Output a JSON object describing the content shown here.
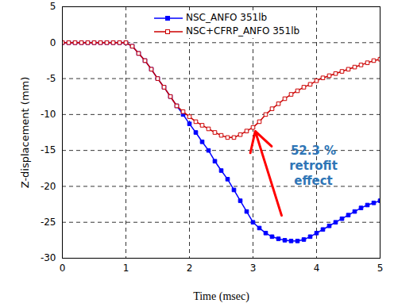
{
  "chart_data": {
    "type": "line",
    "x_label": "Time (msec)",
    "y_label": "Z-displacement (mm)",
    "xlim": [
      0,
      5
    ],
    "xticks": [
      0,
      1,
      2,
      3,
      4,
      5
    ],
    "ylim": [
      -30,
      5
    ],
    "yticks": [
      -30,
      -25,
      -20,
      -15,
      -10,
      -5,
      0,
      5
    ],
    "grid": true,
    "legend": "top",
    "annotations": [
      {
        "text": "52.3 %\nretrofit\neffect",
        "color": "#2e75b6"
      }
    ],
    "x": [
      0,
      0.1,
      0.2,
      0.3,
      0.4,
      0.5,
      0.6,
      0.7,
      0.8,
      0.9,
      1,
      1.1,
      1.2,
      1.3,
      1.4,
      1.5,
      1.6,
      1.7,
      1.8,
      1.9,
      2,
      2.1,
      2.2,
      2.3,
      2.4,
      2.5,
      2.6,
      2.7,
      2.8,
      2.9,
      3,
      3.1,
      3.2,
      3.3,
      3.4,
      3.5,
      3.6,
      3.7,
      3.8,
      3.9,
      4,
      4.1,
      4.2,
      4.3,
      4.4,
      4.5,
      4.6,
      4.7,
      4.8,
      4.9,
      5
    ],
    "series": [
      {
        "name": "NSC_ANFO 351lb",
        "color": "#0000ff",
        "marker": "square",
        "values": [
          0,
          0,
          0,
          0,
          0,
          0,
          0,
          0,
          0,
          0,
          0,
          -0.5,
          -1.5,
          -2.5,
          -3.7,
          -5,
          -6.2,
          -7.5,
          -8.8,
          -10,
          -11.3,
          -12.5,
          -13.8,
          -15,
          -16.5,
          -17.8,
          -19,
          -20.5,
          -22,
          -23.5,
          -25,
          -25.8,
          -26.5,
          -27,
          -27.3,
          -27.5,
          -27.6,
          -27.6,
          -27.4,
          -27,
          -26.5,
          -26,
          -25.5,
          -25,
          -24.5,
          -24,
          -23.5,
          -23,
          -22.6,
          -22.3,
          -22
        ]
      },
      {
        "name": "NSC+CFRP_ANFO 351lb",
        "color": "#cc0000",
        "marker": "square_open",
        "values": [
          0,
          0,
          0,
          0,
          0,
          0,
          0,
          0,
          0,
          0,
          0,
          -0.5,
          -1.5,
          -2.5,
          -3.7,
          -5,
          -6.2,
          -7.5,
          -8.8,
          -9.6,
          -10.3,
          -11,
          -11.5,
          -12,
          -12.5,
          -12.9,
          -13.2,
          -13.2,
          -12.8,
          -12.3,
          -11.8,
          -11,
          -10,
          -9.2,
          -8.5,
          -7.8,
          -7.2,
          -6.7,
          -6.2,
          -5.8,
          -5.3,
          -4.9,
          -4.6,
          -4.3,
          -4,
          -3.7,
          -3.4,
          -3.1,
          -2.8,
          -2.5,
          -2.3
        ]
      }
    ]
  }
}
